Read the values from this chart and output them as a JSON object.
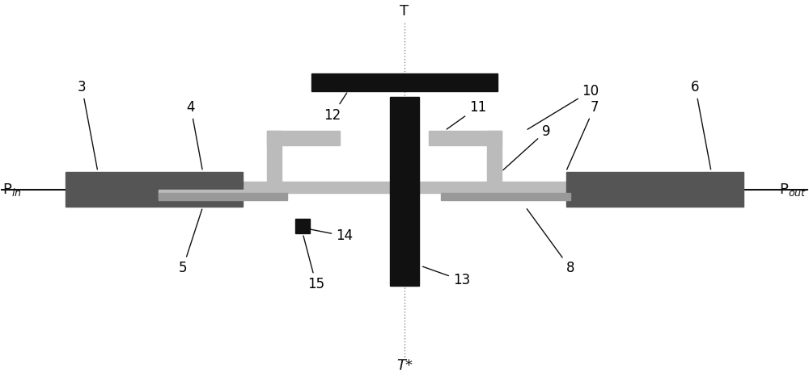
{
  "bg_color": "#ffffff",
  "dark_gray": "#555555",
  "mid_gray": "#999999",
  "light_gray": "#bbbbbb",
  "black": "#111111",
  "dashed_color": "#aaaaaa",
  "fig_width": 10.0,
  "fig_height": 4.67,
  "labels": {
    "T_top": "T",
    "T_bottom": "T*",
    "Pin": "P$_{in}$",
    "Pout": "P$_{out}$",
    "num_3": "3",
    "num_4": "4",
    "num_5": "5",
    "num_6": "6",
    "num_7": "7",
    "num_8": "8",
    "num_9": "9",
    "num_10": "10",
    "num_11": "11",
    "num_12": "12",
    "num_13": "13",
    "num_14": "14",
    "num_15": "15"
  }
}
